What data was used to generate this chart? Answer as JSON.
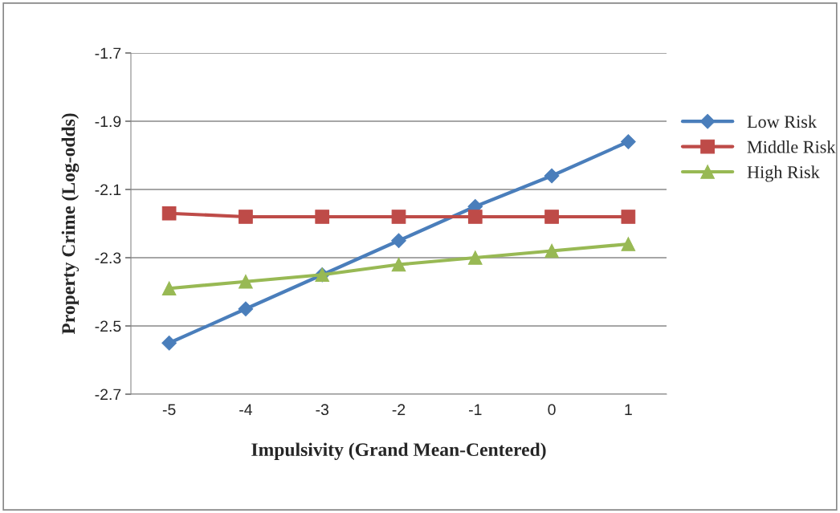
{
  "chart_data": {
    "type": "line",
    "xlabel": "Impulsivity (Grand Mean-Centered)",
    "ylabel": "Property Crime (Log-odds)",
    "categories": [
      "-5",
      "-4",
      "-3",
      "-2",
      "-1",
      "0",
      "1"
    ],
    "series": [
      {
        "name": "Low Risk",
        "color": "#4a7ebb",
        "marker": "diamond",
        "values": [
          -2.55,
          -2.45,
          -2.35,
          -2.25,
          -2.15,
          -2.06,
          -1.96
        ]
      },
      {
        "name": "Middle Risk",
        "color": "#be4b48",
        "marker": "square",
        "values": [
          -2.17,
          -2.18,
          -2.18,
          -2.18,
          -2.18,
          -2.18,
          -2.18
        ]
      },
      {
        "name": "High Risk",
        "color": "#98b954",
        "marker": "triangle",
        "values": [
          -2.39,
          -2.37,
          -2.35,
          -2.32,
          -2.3,
          -2.28,
          -2.26
        ]
      }
    ],
    "ylim": [
      -2.7,
      -1.7
    ],
    "yticks": [
      -2.7,
      -2.5,
      -2.3,
      -2.1,
      -1.9,
      -1.7
    ],
    "grid": "y",
    "legend": "right"
  }
}
